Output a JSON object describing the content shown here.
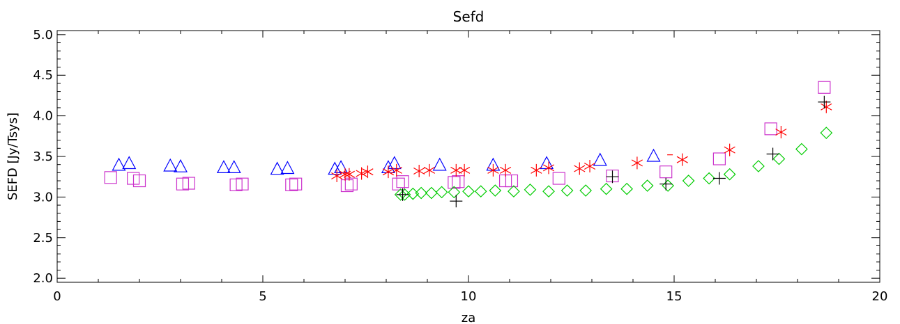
{
  "chart_data": {
    "type": "scatter",
    "title": "Sefd",
    "xlabel": "za",
    "ylabel": "SEFD [Jy/Tsys]",
    "xlim": [
      0,
      20
    ],
    "ylim": [
      1.95,
      5.05
    ],
    "xticks": [
      0,
      5,
      10,
      15,
      20
    ],
    "yticks": [
      2.0,
      2.5,
      3.0,
      3.5,
      4.0,
      4.5,
      5.0
    ],
    "xtick_labels": [
      "0",
      "5",
      "10",
      "15",
      "20"
    ],
    "ytick_labels": [
      "2.0",
      "2.5",
      "3.0",
      "3.5",
      "4.0",
      "4.5",
      "5.0"
    ],
    "grid": false,
    "series": [
      {
        "marker": "triangle",
        "color": "#0000ff",
        "points": [
          [
            1.5,
            3.39
          ],
          [
            1.75,
            3.41
          ],
          [
            2.75,
            3.38
          ],
          [
            3.0,
            3.37
          ],
          [
            4.05,
            3.36
          ],
          [
            4.3,
            3.36
          ],
          [
            5.35,
            3.34
          ],
          [
            5.6,
            3.35
          ],
          [
            6.75,
            3.34
          ],
          [
            6.9,
            3.36
          ],
          [
            8.05,
            3.36
          ],
          [
            8.2,
            3.41
          ],
          [
            9.3,
            3.39
          ],
          [
            10.6,
            3.39
          ],
          [
            11.9,
            3.41
          ],
          [
            13.2,
            3.45
          ],
          [
            14.5,
            3.5
          ]
        ]
      },
      {
        "marker": "square",
        "color": "#cc33cc",
        "points": [
          [
            1.3,
            3.24
          ],
          [
            1.85,
            3.23
          ],
          [
            2.0,
            3.2
          ],
          [
            3.05,
            3.16
          ],
          [
            3.2,
            3.17
          ],
          [
            4.35,
            3.15
          ],
          [
            4.5,
            3.16
          ],
          [
            5.7,
            3.15
          ],
          [
            5.8,
            3.16
          ],
          [
            7.05,
            3.14
          ],
          [
            7.15,
            3.16
          ],
          [
            8.3,
            3.16
          ],
          [
            8.4,
            3.19
          ],
          [
            9.65,
            3.18
          ],
          [
            9.75,
            3.19
          ],
          [
            10.9,
            3.2
          ],
          [
            11.05,
            3.2
          ],
          [
            12.2,
            3.23
          ],
          [
            13.5,
            3.26
          ],
          [
            14.8,
            3.31
          ],
          [
            16.1,
            3.47
          ],
          [
            17.35,
            3.84
          ],
          [
            18.65,
            4.35
          ]
        ]
      },
      {
        "marker": "asterisk",
        "color": "#ff0000",
        "points": [
          [
            6.8,
            3.26
          ],
          [
            7.0,
            3.28
          ],
          [
            7.1,
            3.28
          ],
          [
            7.4,
            3.29
          ],
          [
            7.55,
            3.31
          ],
          [
            8.05,
            3.31
          ],
          [
            8.25,
            3.33
          ],
          [
            8.8,
            3.32
          ],
          [
            9.05,
            3.33
          ],
          [
            9.7,
            3.33
          ],
          [
            9.9,
            3.33
          ],
          [
            10.6,
            3.33
          ],
          [
            10.9,
            3.33
          ],
          [
            11.65,
            3.33
          ],
          [
            11.95,
            3.36
          ],
          [
            12.7,
            3.35
          ],
          [
            12.95,
            3.38
          ],
          [
            14.1,
            3.42
          ],
          [
            15.2,
            3.46
          ],
          [
            16.35,
            3.58
          ],
          [
            17.6,
            3.8
          ],
          [
            18.7,
            4.11
          ]
        ]
      },
      {
        "marker": "diamond",
        "color": "#00cc00",
        "points": [
          [
            8.35,
            3.03
          ],
          [
            8.45,
            3.03
          ],
          [
            8.65,
            3.04
          ],
          [
            8.85,
            3.05
          ],
          [
            9.1,
            3.05
          ],
          [
            9.35,
            3.06
          ],
          [
            9.65,
            3.06
          ],
          [
            10.0,
            3.07
          ],
          [
            10.3,
            3.07
          ],
          [
            10.65,
            3.08
          ],
          [
            11.1,
            3.07
          ],
          [
            11.5,
            3.09
          ],
          [
            11.95,
            3.07
          ],
          [
            12.4,
            3.08
          ],
          [
            12.85,
            3.08
          ],
          [
            13.35,
            3.1
          ],
          [
            13.85,
            3.1
          ],
          [
            14.35,
            3.14
          ],
          [
            14.85,
            3.14
          ],
          [
            15.35,
            3.2
          ],
          [
            15.85,
            3.23
          ],
          [
            16.35,
            3.28
          ],
          [
            17.05,
            3.38
          ],
          [
            17.55,
            3.47
          ],
          [
            18.1,
            3.59
          ],
          [
            18.7,
            3.79
          ]
        ]
      },
      {
        "marker": "plus",
        "color": "#000000",
        "points": [
          [
            8.4,
            3.03
          ],
          [
            9.7,
            2.95
          ],
          [
            13.5,
            3.25
          ],
          [
            14.8,
            3.16
          ],
          [
            16.1,
            3.23
          ],
          [
            17.4,
            3.53
          ],
          [
            18.65,
            4.17
          ]
        ]
      },
      {
        "marker": "dash",
        "color": "#ff0000",
        "points": [
          [
            14.9,
            3.52
          ]
        ]
      }
    ]
  }
}
